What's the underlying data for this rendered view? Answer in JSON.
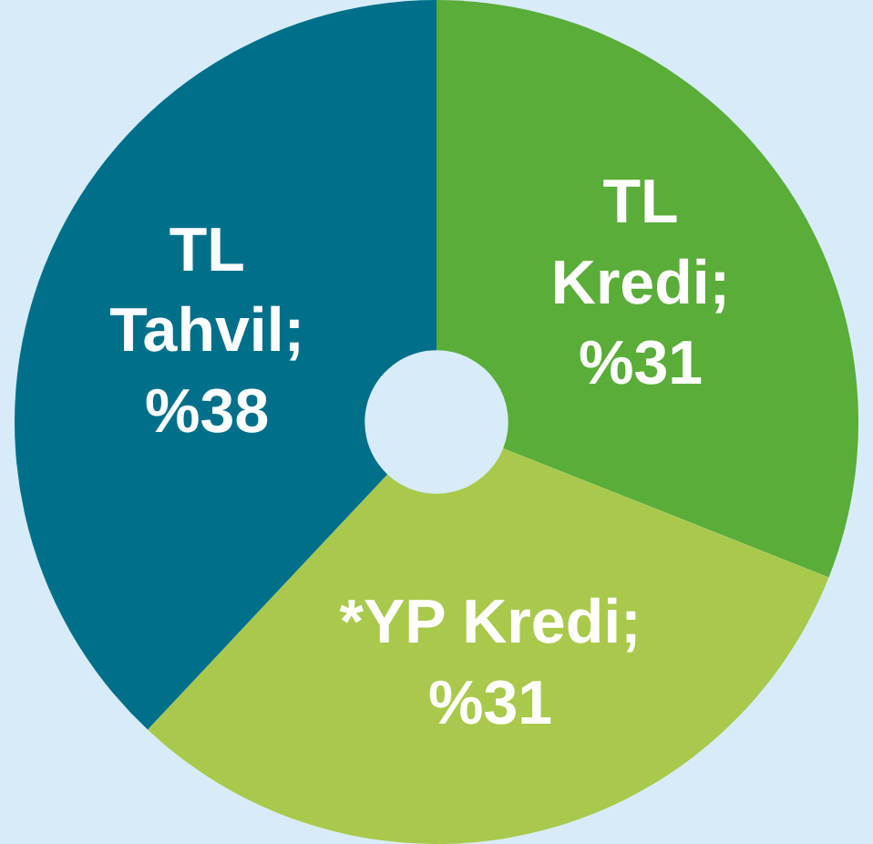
{
  "chart_data": {
    "type": "donut",
    "categories": [
      "TL\nKredi",
      "*YP Kredi",
      "TL\nTahvil"
    ],
    "values": [
      31,
      31,
      38
    ],
    "value_labels": [
      "; %31",
      "; %31",
      "; %38"
    ],
    "colors": [
      "#5aad38",
      "#a9c94c",
      "#00708a"
    ]
  }
}
